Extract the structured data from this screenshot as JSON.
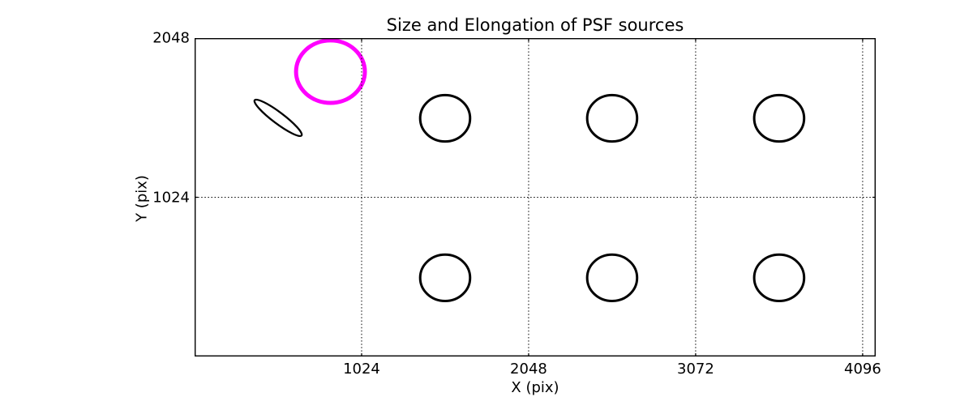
{
  "chart_data": {
    "type": "scatter",
    "title": "Size and Elongation of PSF sources",
    "xlabel": "X (pix)",
    "ylabel": "Y (pix)",
    "xlim": [
      0,
      4176
    ],
    "ylim": [
      0,
      2048
    ],
    "xticks": [
      {
        "value": 1024,
        "label": "1024"
      },
      {
        "value": 2048,
        "label": "2048"
      },
      {
        "value": 3072,
        "label": "3072"
      },
      {
        "value": 4096,
        "label": "4096"
      }
    ],
    "yticks": [
      {
        "value": 1024,
        "label": "1024"
      },
      {
        "value": 2048,
        "label": "2048"
      }
    ],
    "grid": {
      "visible": true,
      "linestyle": "dotted",
      "color": "#000000"
    },
    "axis_color": "#000000",
    "background_color": "#ffffff",
    "highlight_color": "#ff00ff",
    "legend": "none",
    "ellipses": [
      {
        "id": "psf-highlighted",
        "x": 833,
        "y": 1832,
        "rx": 211,
        "ry": 201,
        "angle_deg": 0,
        "color": "#ff00ff",
        "linewidth": 5
      },
      {
        "id": "psf-elongated",
        "x": 512,
        "y": 1535,
        "rx": 180,
        "ry": 36,
        "angle_deg": -37,
        "color": "#000000",
        "linewidth": 2.3
      },
      {
        "id": "psf-source-1",
        "x": 1536,
        "y": 1532,
        "rx": 153,
        "ry": 149,
        "angle_deg": 0,
        "color": "#000000",
        "linewidth": 3
      },
      {
        "id": "psf-source-2",
        "x": 2560,
        "y": 1532,
        "rx": 153,
        "ry": 149,
        "angle_deg": 0,
        "color": "#000000",
        "linewidth": 3
      },
      {
        "id": "psf-source-3",
        "x": 3584,
        "y": 1532,
        "rx": 153,
        "ry": 149,
        "angle_deg": 0,
        "color": "#000000",
        "linewidth": 3
      },
      {
        "id": "psf-source-4",
        "x": 1536,
        "y": 506,
        "rx": 153,
        "ry": 149,
        "angle_deg": 0,
        "color": "#000000",
        "linewidth": 3
      },
      {
        "id": "psf-source-5",
        "x": 2560,
        "y": 506,
        "rx": 153,
        "ry": 149,
        "angle_deg": 0,
        "color": "#000000",
        "linewidth": 3
      },
      {
        "id": "psf-source-6",
        "x": 3584,
        "y": 506,
        "rx": 153,
        "ry": 149,
        "angle_deg": 0,
        "color": "#000000",
        "linewidth": 3
      }
    ]
  }
}
